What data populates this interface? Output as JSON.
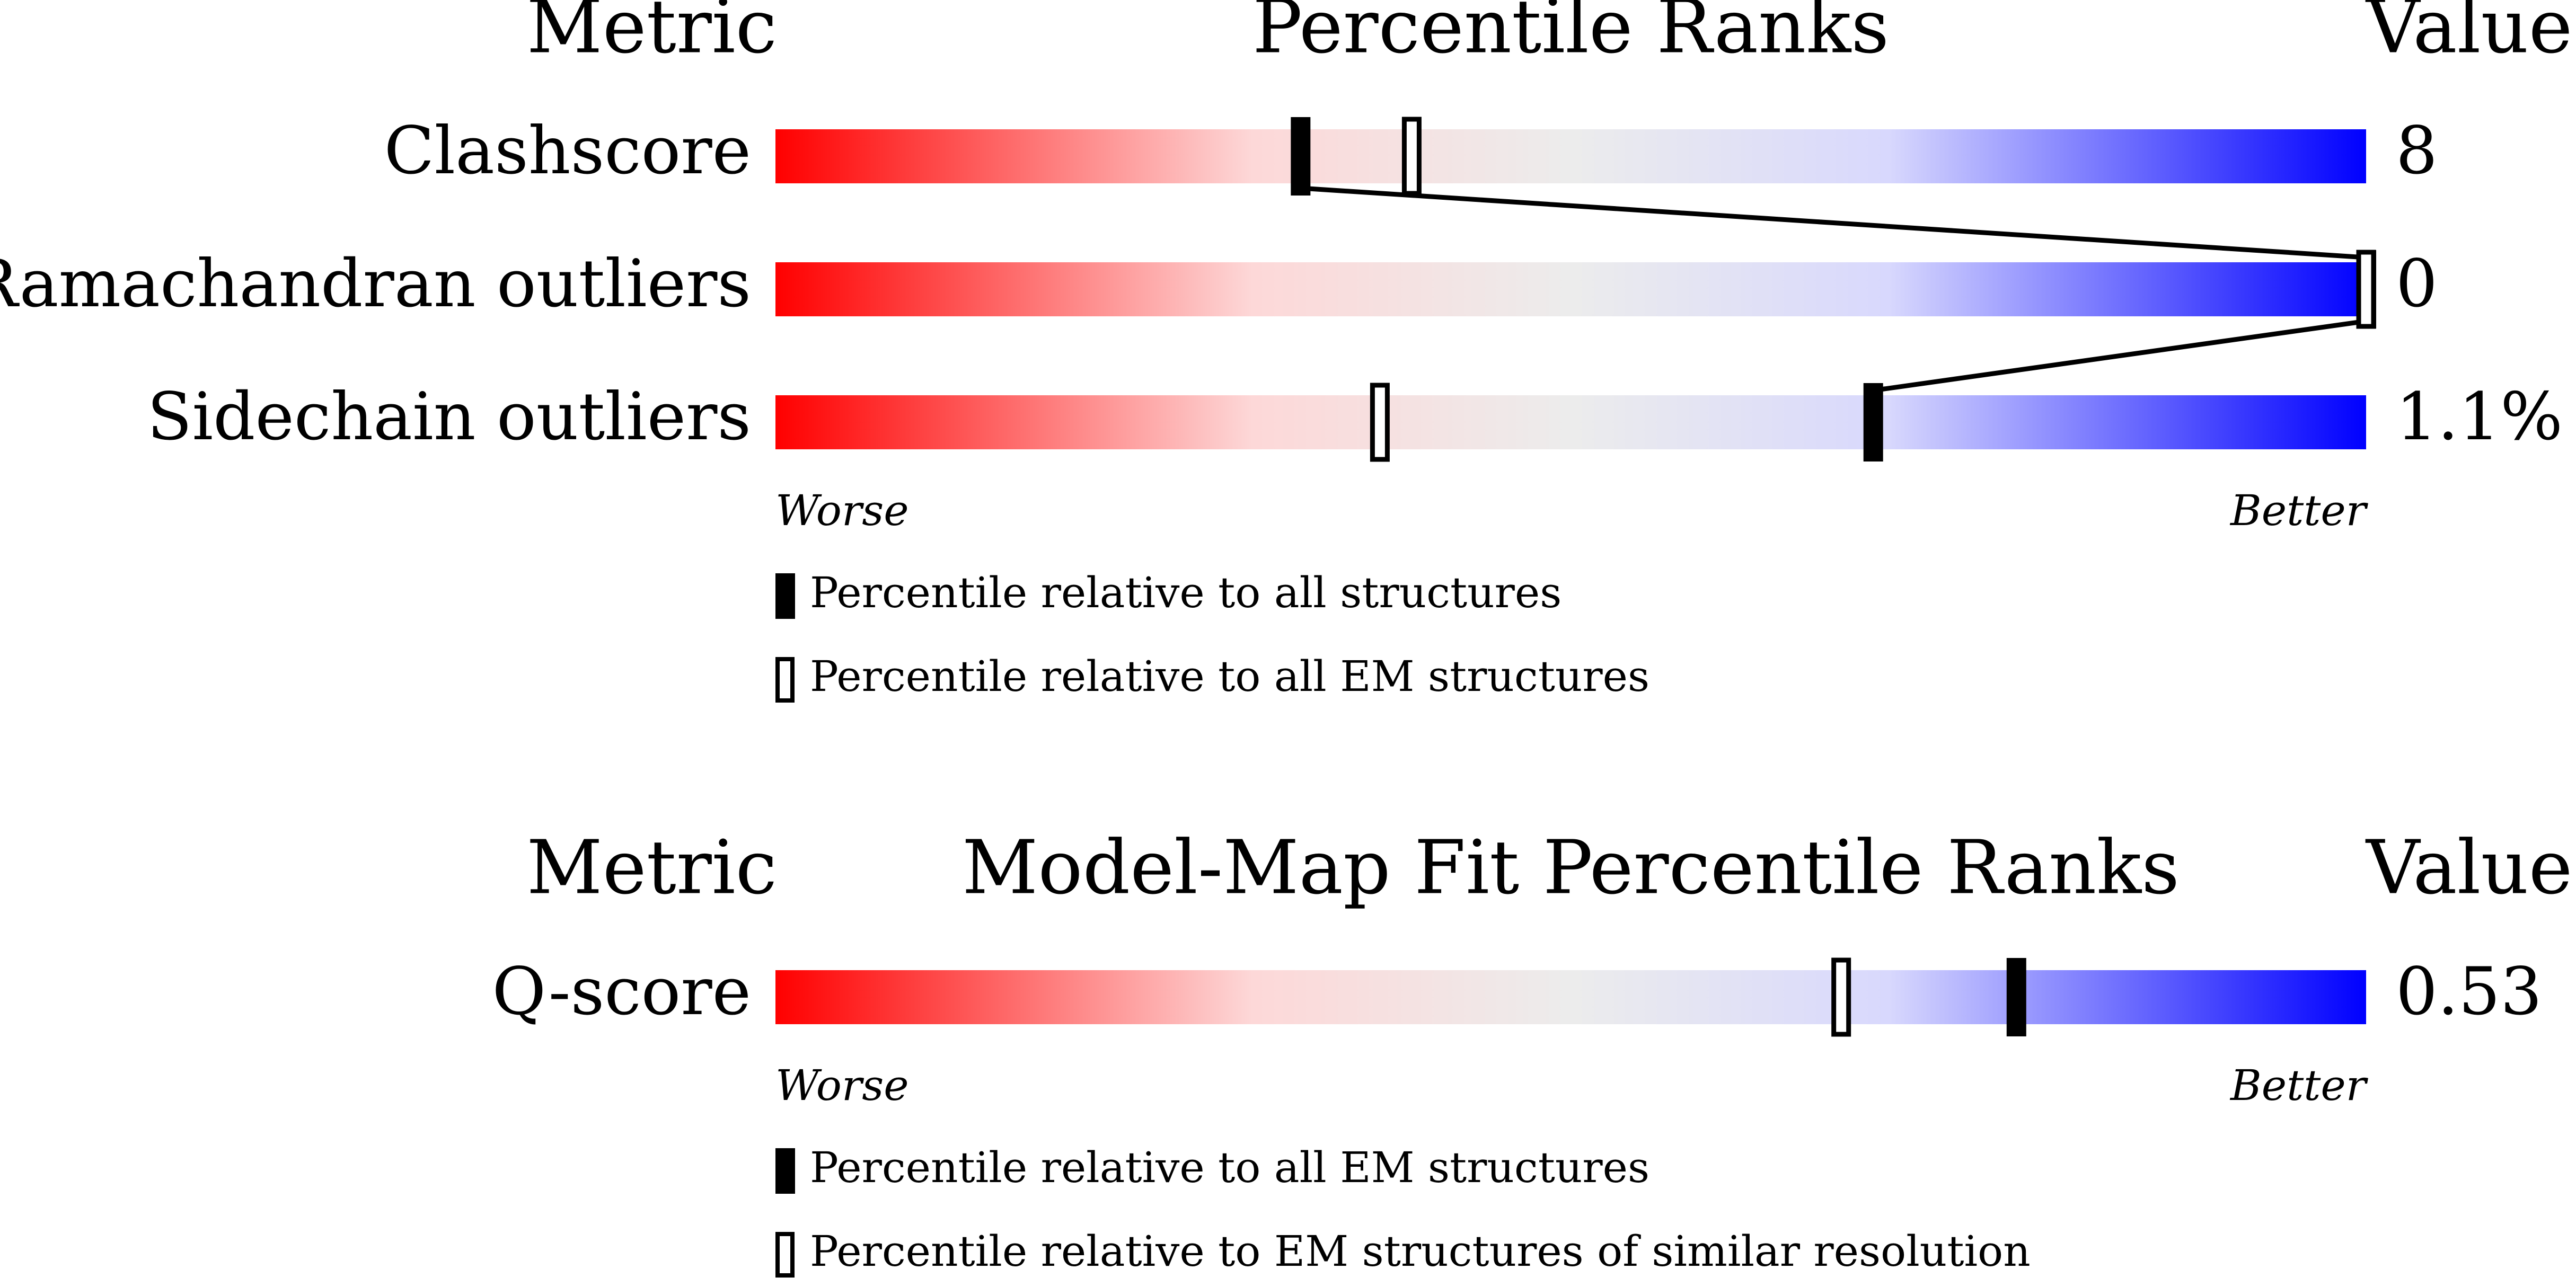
{
  "chart_data": [
    {
      "type": "slider",
      "headers": {
        "metric": "Metric",
        "title": "Percentile Ranks",
        "value": "Value"
      },
      "metrics": [
        "Clashscore",
        "Ramachandran outliers",
        "Sidechain outliers"
      ],
      "value_texts": [
        "8",
        "0",
        "1.1%"
      ],
      "xlim": [
        0,
        100
      ],
      "x_labels": {
        "low": "Worse",
        "high": "Better"
      },
      "series": [
        {
          "name": "Percentile relative to all structures",
          "style": "filled",
          "color": "#000000",
          "values": [
            33,
            100,
            69
          ]
        },
        {
          "name": "Percentile relative to all EM structures",
          "style": "open",
          "color": "#000000",
          "values": [
            40,
            100,
            38
          ]
        }
      ]
    },
    {
      "type": "slider",
      "headers": {
        "metric": "Metric",
        "title": "Model-Map Fit Percentile Ranks",
        "value": "Value"
      },
      "metrics": [
        "Q-score"
      ],
      "value_texts": [
        "0.53"
      ],
      "xlim": [
        0,
        100
      ],
      "x_labels": {
        "low": "Worse",
        "high": "Better"
      },
      "series": [
        {
          "name": "Percentile relative to all EM structures",
          "style": "filled",
          "color": "#000000",
          "values": [
            78
          ]
        },
        {
          "name": "Percentile relative to EM structures of similar resolution",
          "style": "open",
          "color": "#000000",
          "values": [
            67
          ]
        }
      ]
    }
  ]
}
